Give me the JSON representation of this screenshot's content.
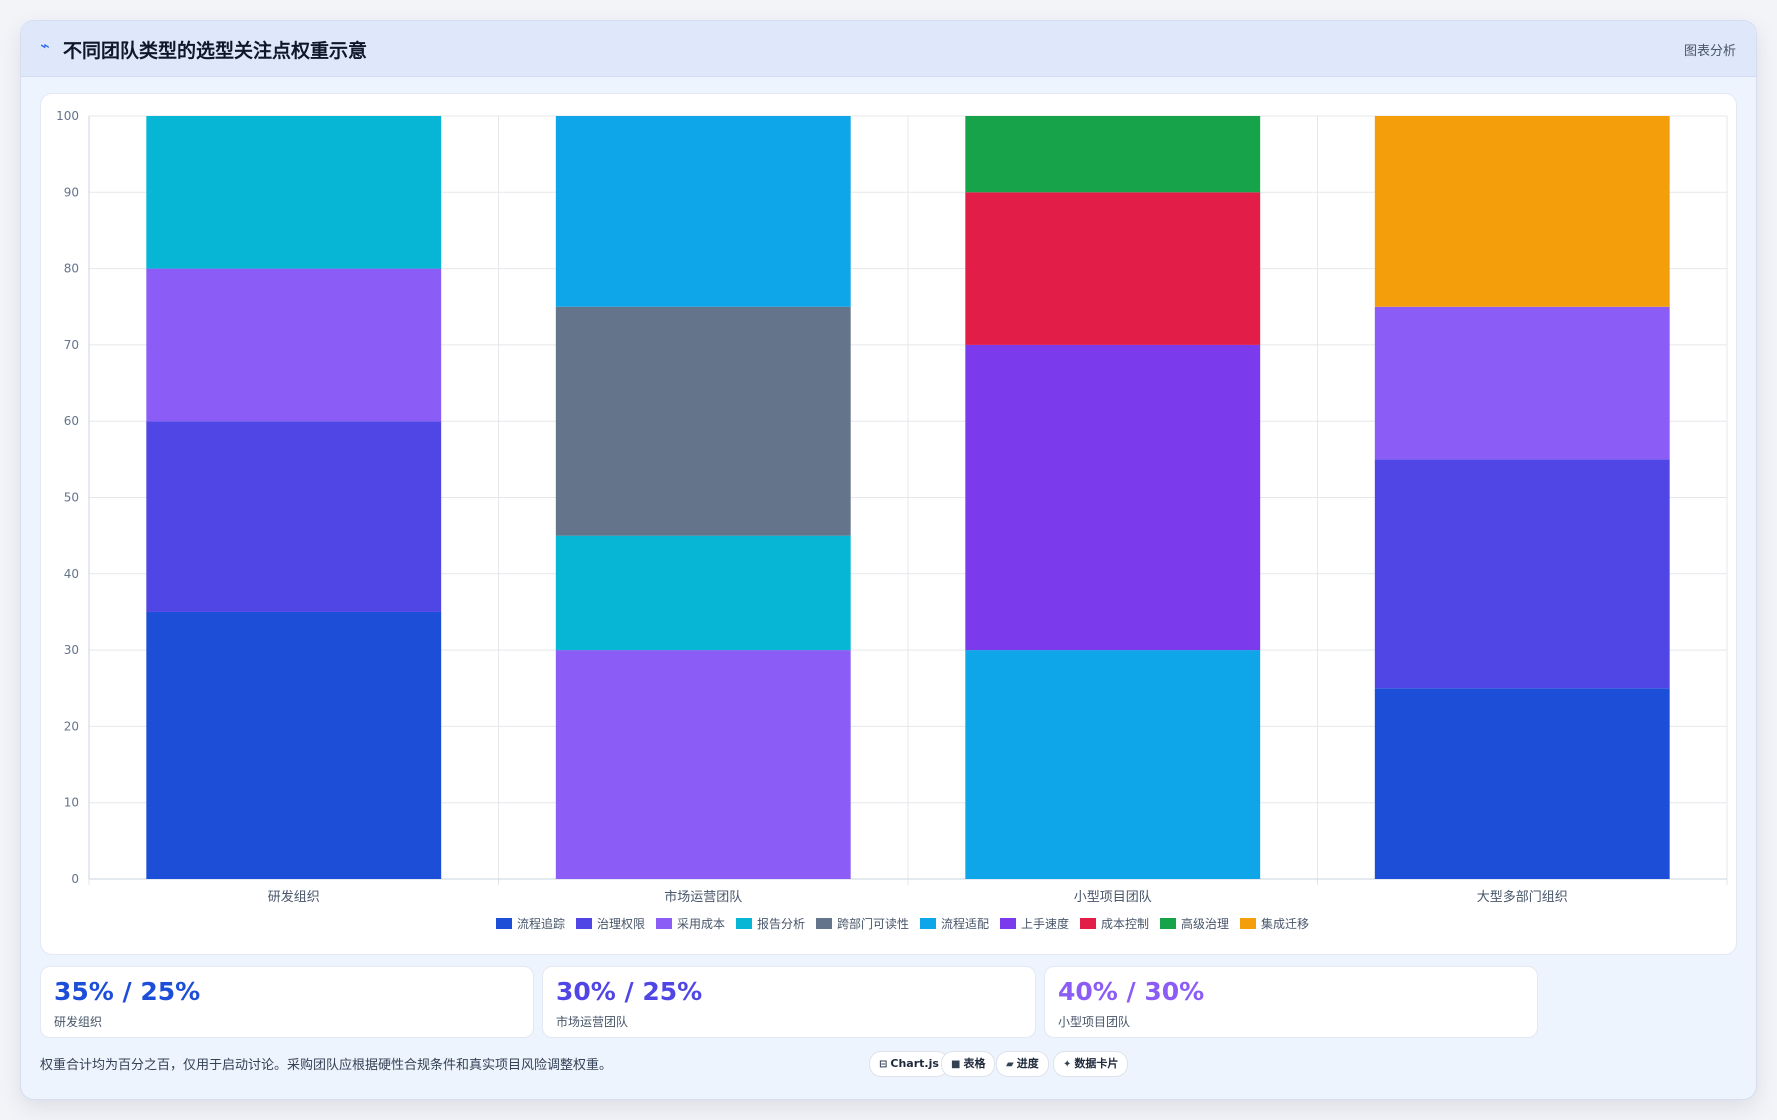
{
  "header": {
    "icon": "line-chart-icon",
    "title": "不同团队类型的选型关注点权重示意",
    "tag": "图表分析"
  },
  "chart_data": {
    "type": "bar",
    "stacked": true,
    "title": "",
    "xlabel": "",
    "ylabel": "",
    "ylim": [
      0,
      100
    ],
    "yticks": [
      0,
      10,
      20,
      30,
      40,
      50,
      60,
      70,
      80,
      90,
      100
    ],
    "grid": true,
    "legend_position": "bottom",
    "categories": [
      "研发组织",
      "市场运营团队",
      "小型项目团队",
      "大型多部门组织"
    ],
    "series": [
      {
        "name": "流程追踪",
        "color": "#1d4ed8",
        "values": [
          35,
          0,
          0,
          25
        ]
      },
      {
        "name": "治理权限",
        "color": "#4f46e5",
        "values": [
          25,
          0,
          0,
          30
        ]
      },
      {
        "name": "采用成本",
        "color": "#8b5cf6",
        "values": [
          20,
          30,
          0,
          20
        ]
      },
      {
        "name": "报告分析",
        "color": "#06b6d4",
        "values": [
          20,
          15,
          0,
          0
        ]
      },
      {
        "name": "跨部门可读性",
        "color": "#64748b",
        "values": [
          0,
          30,
          0,
          0
        ]
      },
      {
        "name": "流程适配",
        "color": "#0ea5e9",
        "values": [
          0,
          25,
          30,
          0
        ]
      },
      {
        "name": "上手速度",
        "color": "#7c3aed",
        "values": [
          0,
          0,
          40,
          0
        ]
      },
      {
        "name": "成本控制",
        "color": "#e11d48",
        "values": [
          0,
          0,
          20,
          0
        ]
      },
      {
        "name": "高级治理",
        "color": "#16a34a",
        "values": [
          0,
          0,
          10,
          0
        ]
      },
      {
        "name": "集成迁移",
        "color": "#f59e0b",
        "values": [
          0,
          0,
          0,
          25
        ]
      }
    ]
  },
  "stats": [
    {
      "value": "35% / 25%",
      "label": "研发组织",
      "color": "#1d4ed8"
    },
    {
      "value": "30% / 25%",
      "label": "市场运营团队",
      "color": "#4f46e5"
    },
    {
      "value": "40% / 30%",
      "label": "小型项目团队",
      "color": "#8b5cf6"
    }
  ],
  "footnote": "权重合计均为百分之百，仅用于启动讨论。采购团队应根据硬性合规条件和真实项目风险调整权重。",
  "pills": [
    {
      "icon": "chart-icon",
      "glyph": "⊟",
      "label": "Chart.js"
    },
    {
      "icon": "table-icon",
      "glyph": "■",
      "label": "表格"
    },
    {
      "icon": "progress-icon",
      "glyph": "▰",
      "label": "进度"
    },
    {
      "icon": "sparkle-icon",
      "glyph": "✦",
      "label": "数据卡片"
    }
  ]
}
